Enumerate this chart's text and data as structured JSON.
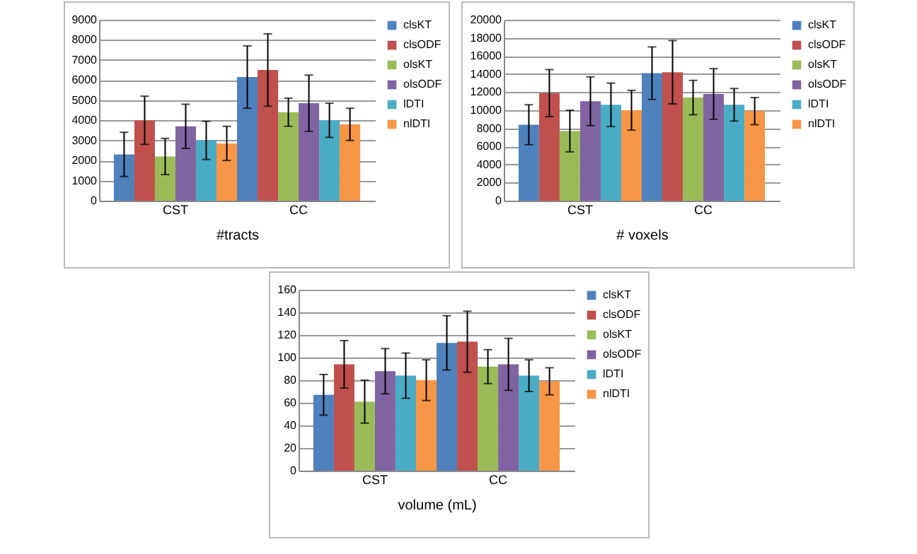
{
  "chart_data": [
    {
      "type": "bar",
      "xlabel": "#tracts",
      "categories": [
        "CST",
        "CC"
      ],
      "ylim": [
        0,
        9000
      ],
      "yticks": [
        0,
        1000,
        2000,
        3000,
        4000,
        5000,
        6000,
        7000,
        8000,
        9000
      ],
      "grid": "y",
      "legend": "right",
      "series": [
        {
          "name": "clsKT",
          "color": "#4f81bd",
          "values": [
            2300,
            6150
          ],
          "errors": [
            1100,
            1550
          ]
        },
        {
          "name": "clsODF",
          "color": "#c0504d",
          "values": [
            4000,
            6500
          ],
          "errors": [
            1200,
            1800
          ]
        },
        {
          "name": "olsKT",
          "color": "#9bbb59",
          "values": [
            2200,
            4400
          ],
          "errors": [
            900,
            700
          ]
        },
        {
          "name": "olsODF",
          "color": "#8064a2",
          "values": [
            3700,
            4850
          ],
          "errors": [
            1100,
            1400
          ]
        },
        {
          "name": "lDTI",
          "color": "#4bacc6",
          "values": [
            3000,
            4000
          ],
          "errors": [
            950,
            850
          ]
        },
        {
          "name": "nlDTI",
          "color": "#f79646",
          "values": [
            2850,
            3800
          ],
          "errors": [
            850,
            800
          ]
        }
      ]
    },
    {
      "type": "bar",
      "xlabel": "# voxels",
      "categories": [
        "CST",
        "CC"
      ],
      "ylim": [
        0,
        20000
      ],
      "yticks": [
        0,
        2000,
        4000,
        6000,
        8000,
        10000,
        12000,
        14000,
        16000,
        18000,
        20000
      ],
      "grid": "y",
      "legend": "right",
      "series": [
        {
          "name": "clsKT",
          "color": "#4f81bd",
          "values": [
            8400,
            14100
          ],
          "errors": [
            2200,
            2900
          ]
        },
        {
          "name": "clsODF",
          "color": "#c0504d",
          "values": [
            11900,
            14200
          ],
          "errors": [
            2600,
            3500
          ]
        },
        {
          "name": "olsKT",
          "color": "#9bbb59",
          "values": [
            7700,
            11400
          ],
          "errors": [
            2300,
            1900
          ]
        },
        {
          "name": "olsODF",
          "color": "#8064a2",
          "values": [
            11000,
            11800
          ],
          "errors": [
            2700,
            2800
          ]
        },
        {
          "name": "lDTI",
          "color": "#4bacc6",
          "values": [
            10600,
            10600
          ],
          "errors": [
            2400,
            1800
          ]
        },
        {
          "name": "nlDTI",
          "color": "#f79646",
          "values": [
            10000,
            9900
          ],
          "errors": [
            2200,
            1500
          ]
        }
      ]
    },
    {
      "type": "bar",
      "xlabel": "volume (mL)",
      "categories": [
        "CST",
        "CC"
      ],
      "ylim": [
        0,
        160
      ],
      "yticks": [
        0,
        20,
        40,
        60,
        80,
        100,
        120,
        140,
        160
      ],
      "grid": "y",
      "legend": "right",
      "series": [
        {
          "name": "clsKT",
          "color": "#4f81bd",
          "values": [
            67,
            113
          ],
          "errors": [
            18,
            24
          ]
        },
        {
          "name": "clsODF",
          "color": "#c0504d",
          "values": [
            94,
            114
          ],
          "errors": [
            21,
            27
          ]
        },
        {
          "name": "olsKT",
          "color": "#9bbb59",
          "values": [
            61,
            92
          ],
          "errors": [
            19,
            15
          ]
        },
        {
          "name": "olsODF",
          "color": "#8064a2",
          "values": [
            88,
            94
          ],
          "errors": [
            20,
            23
          ]
        },
        {
          "name": "lDTI",
          "color": "#4bacc6",
          "values": [
            84,
            84
          ],
          "errors": [
            20,
            14
          ]
        },
        {
          "name": "nlDTI",
          "color": "#f79646",
          "values": [
            80,
            79
          ],
          "errors": [
            18,
            12
          ]
        }
      ]
    }
  ]
}
